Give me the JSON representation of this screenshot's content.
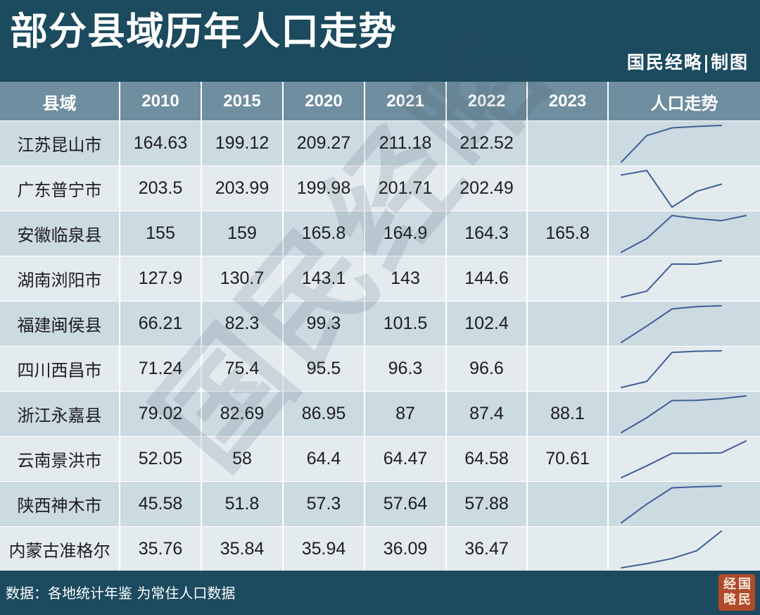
{
  "title": "部分县域历年人口走势",
  "credit": "国民经略|制图",
  "source": "数据：各地统计年鉴  为常住人口数据",
  "watermark": "国民经略",
  "seal_text": [
    "经",
    "国",
    "略",
    "民"
  ],
  "colors": {
    "header_bg": "#1c4a5e",
    "table_header": "#6f8e9f",
    "row_a": "#ccdae2",
    "row_b": "#e4ebef",
    "sparkline": "#3f5f96",
    "seal": "#b04a2d"
  },
  "chart_data": {
    "type": "table",
    "columns": [
      "县域",
      "2010",
      "2015",
      "2020",
      "2021",
      "2022",
      "2023",
      "人口走势"
    ],
    "years": [
      2010,
      2015,
      2020,
      2021,
      2022,
      2023
    ],
    "rows": [
      {
        "name": "江苏昆山市",
        "values": [
          "164.63",
          "199.12",
          "209.27",
          "211.18",
          "212.52",
          ""
        ]
      },
      {
        "name": "广东普宁市",
        "values": [
          "203.5",
          "203.99",
          "199.98",
          "201.71",
          "202.49",
          ""
        ]
      },
      {
        "name": "安徽临泉县",
        "values": [
          "155",
          "159",
          "165.8",
          "164.9",
          "164.3",
          "165.8"
        ]
      },
      {
        "name": "湖南浏阳市",
        "values": [
          "127.9",
          "130.7",
          "143.1",
          "143",
          "144.6",
          ""
        ]
      },
      {
        "name": "福建闽侯县",
        "values": [
          "66.21",
          "82.3",
          "99.3",
          "101.5",
          "102.4",
          ""
        ]
      },
      {
        "name": "四川西昌市",
        "values": [
          "71.24",
          "75.4",
          "95.5",
          "96.3",
          "96.6",
          ""
        ]
      },
      {
        "name": "浙江永嘉县",
        "values": [
          "79.02",
          "82.69",
          "86.95",
          "87",
          "87.4",
          "88.1"
        ]
      },
      {
        "name": "云南景洪市",
        "values": [
          "52.05",
          "58",
          "64.4",
          "64.47",
          "64.58",
          "70.61"
        ]
      },
      {
        "name": "陕西神木市",
        "values": [
          "45.58",
          "51.8",
          "57.3",
          "57.64",
          "57.88",
          ""
        ]
      },
      {
        "name": "内蒙古准格尔",
        "values": [
          "35.76",
          "35.84",
          "35.94",
          "36.09",
          "36.47",
          ""
        ]
      }
    ]
  }
}
